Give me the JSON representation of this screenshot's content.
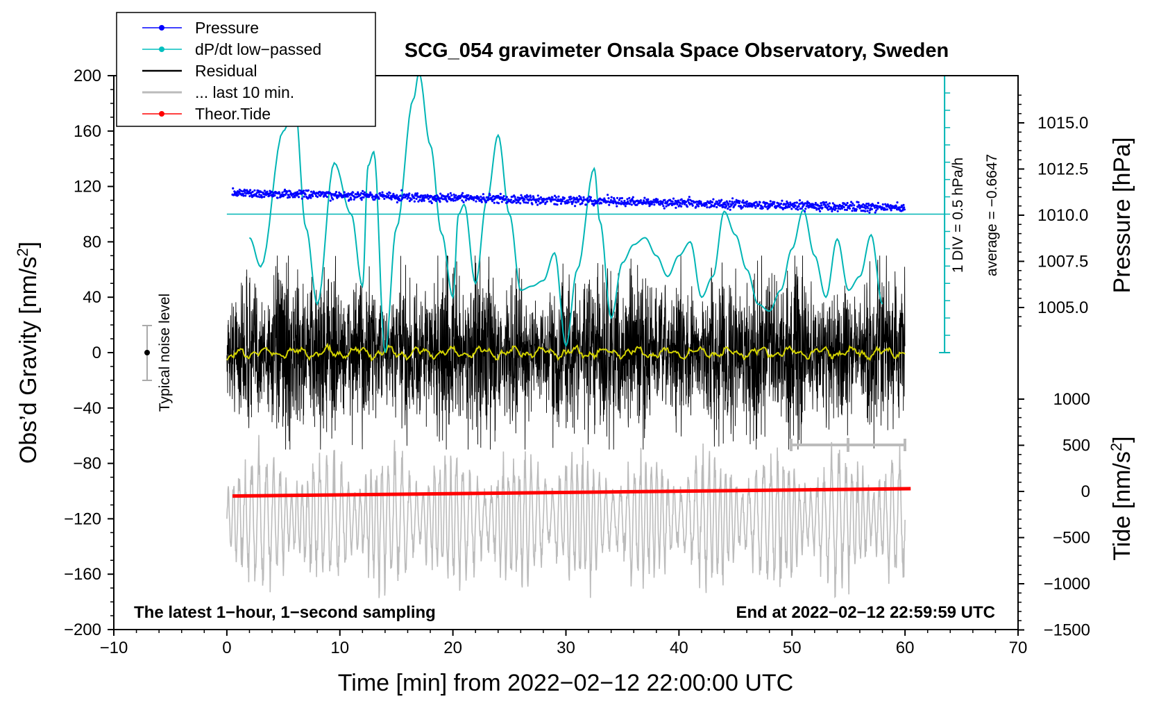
{
  "chart_data": {
    "type": "line",
    "title": "SCG_054 gravimeter Onsala Space Observatory, Sweden",
    "xlabel": "Time [min] from 2022−02−12 22:00:00 UTC",
    "ylabel_left": "Obs’d Gravity [nm/s",
    "ylabel_left_sup": "2",
    "ylabel_left_end": "]",
    "ylabel_right_pressure": "Pressure [hPa]",
    "ylabel_right_tide": "Tide [nm/s",
    "ylabel_right_tide_sup": "2",
    "ylabel_right_tide_end": "]",
    "xlim": [
      -10,
      70
    ],
    "ylim": [
      -200,
      200
    ],
    "pressure_ylim": [
      1000,
      1017.5
    ],
    "tide_ylim": [
      -1500,
      1000
    ],
    "x_ticks": [
      "−10",
      "0",
      "10",
      "20",
      "30",
      "40",
      "50",
      "60",
      "70"
    ],
    "y_ticks": [
      "200",
      "160",
      "120",
      "80",
      "40",
      "0",
      "−40",
      "−80",
      "−120",
      "−160",
      "−200"
    ],
    "pressure_ticks": [
      "1015.0",
      "1012.5",
      "1010.0",
      "1007.5",
      "1005.0"
    ],
    "tide_ticks": [
      "1000",
      "500",
      "0",
      "−500",
      "−1000",
      "−1500"
    ],
    "annotations": {
      "bottom_left": "The latest 1−hour, 1−second sampling",
      "bottom_right": "End at 2022−02−12 22:59:59 UTC",
      "noise": "Typical noise level",
      "div": "1 DIV = 0.5 hPa/h",
      "average": "average = −0.6647"
    },
    "legend": [
      {
        "label": "Pressure",
        "color": "#0000ff",
        "marker": true
      },
      {
        "label": "dP/dt low−passed",
        "color": "#00bfbf",
        "marker": true
      },
      {
        "label": "Residual",
        "color": "#000000",
        "marker": false
      },
      {
        "label": "... last 10 min.",
        "color": "#bbbbbb",
        "marker": false
      },
      {
        "label": "Theor.Tide",
        "color": "#ff0000",
        "marker": true
      }
    ],
    "series": [
      {
        "name": "Pressure",
        "unit": "hPa",
        "start": [
          0.5,
          1011.2
        ],
        "end": [
          60.0,
          1010.4
        ]
      },
      {
        "name": "dP/dt low−passed",
        "unit": "gravity axis",
        "x": [
          2,
          3,
          5,
          6,
          7,
          8,
          9.5,
          11,
          12,
          12.5,
          13,
          14,
          15,
          16.5,
          17,
          18,
          19,
          20,
          20.5,
          21,
          22,
          23,
          24,
          25,
          26,
          27,
          28,
          29,
          30,
          31,
          32.5,
          33,
          34,
          35,
          36,
          37,
          38,
          39,
          40,
          41,
          42,
          43,
          44,
          45,
          46,
          47,
          48,
          49,
          50,
          51,
          52,
          53,
          54,
          55,
          56,
          57,
          58
        ],
        "y": [
          83,
          62,
          160,
          180,
          90,
          35,
          137,
          100,
          48,
          135,
          145,
          0,
          90,
          183,
          202,
          150,
          86,
          40,
          100,
          107,
          50,
          110,
          157,
          100,
          45,
          48,
          52,
          72,
          5,
          60,
          133,
          95,
          25,
          65,
          78,
          83,
          70,
          55,
          70,
          80,
          40,
          55,
          102,
          85,
          60,
          35,
          30,
          45,
          75,
          103,
          70,
          40,
          82,
          45,
          55,
          85,
          35
        ]
      },
      {
        "name": "Residual",
        "unit": "nm/s2",
        "x_range": [
          0,
          60
        ],
        "envelope": 45,
        "low_passed_mean": 0
      },
      {
        "name": "... last 10 min.",
        "unit": "nm/s2 (offset)",
        "x_range": [
          0,
          60
        ],
        "center": -120,
        "amplitude": 40
      },
      {
        "name": "Theor.Tide",
        "unit": "nm/s2",
        "x": [
          0.5,
          60.5
        ],
        "y": [
          -50,
          30
        ]
      }
    ]
  }
}
